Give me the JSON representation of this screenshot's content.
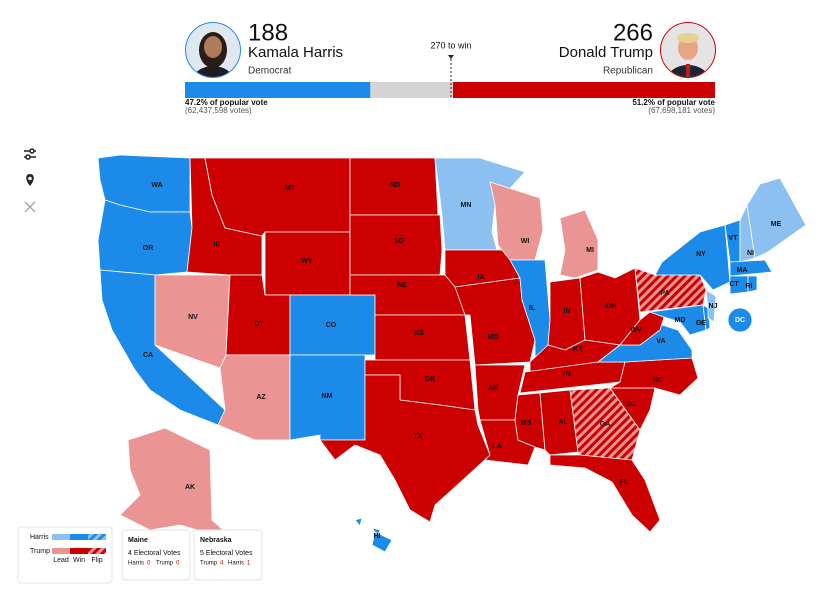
{
  "header": {
    "harris": {
      "electoral_votes": 188,
      "name": "Kamala Harris",
      "party": "Democrat",
      "color": "#1b8ae8",
      "popular_vote": "47.2% of popular vote",
      "votes": "(62,437,598 votes)"
    },
    "trump": {
      "electoral_votes": 266,
      "name": "Donald Trump",
      "party": "Republican",
      "color": "#cc0000",
      "popular_vote": "51.2% of popular vote",
      "votes": "(67,698,181 votes)"
    },
    "electoral_bar": {
      "xlim": [
        0,
        538
      ],
      "threshold": {
        "value": 270,
        "label": "270 to win"
      }
    }
  },
  "map": {
    "colors": {
      "harris_win": "#1b8ae8",
      "harris_lead": "#8cc0f0",
      "trump_win": "#cc0000",
      "trump_lead": "#eb9494"
    },
    "states": [
      {
        "label": "WA",
        "status": "harris_win"
      },
      {
        "label": "OR",
        "status": "harris_win"
      },
      {
        "label": "CA",
        "status": "harris_win"
      },
      {
        "label": "NV",
        "status": "trump_lead"
      },
      {
        "label": "ID",
        "status": "trump_win"
      },
      {
        "label": "MT",
        "status": "trump_win"
      },
      {
        "label": "WY",
        "status": "trump_win"
      },
      {
        "label": "UT",
        "status": "trump_win"
      },
      {
        "label": "CO",
        "status": "harris_win"
      },
      {
        "label": "AZ",
        "status": "trump_lead"
      },
      {
        "label": "NM",
        "status": "harris_win"
      },
      {
        "label": "ND",
        "status": "trump_win"
      },
      {
        "label": "SD",
        "status": "trump_win"
      },
      {
        "label": "NE",
        "status": "trump_win"
      },
      {
        "label": "KS",
        "status": "trump_win"
      },
      {
        "label": "OK",
        "status": "trump_win"
      },
      {
        "label": "TX",
        "status": "trump_win"
      },
      {
        "label": "MN",
        "status": "harris_lead"
      },
      {
        "label": "IA",
        "status": "trump_win"
      },
      {
        "label": "MO",
        "status": "trump_win"
      },
      {
        "label": "AR",
        "status": "trump_win"
      },
      {
        "label": "LA",
        "status": "trump_win"
      },
      {
        "label": "WI",
        "status": "trump_lead"
      },
      {
        "label": "IL",
        "status": "harris_win"
      },
      {
        "label": "MI",
        "status": "trump_lead"
      },
      {
        "label": "IN",
        "status": "trump_win"
      },
      {
        "label": "OH",
        "status": "trump_win"
      },
      {
        "label": "KY",
        "status": "trump_win"
      },
      {
        "label": "TN",
        "status": "trump_win"
      },
      {
        "label": "MS",
        "status": "trump_win"
      },
      {
        "label": "AL",
        "status": "trump_win"
      },
      {
        "label": "GA",
        "status": "trump_win",
        "flip": true
      },
      {
        "label": "FL",
        "status": "trump_win"
      },
      {
        "label": "SC",
        "status": "trump_win"
      },
      {
        "label": "NC",
        "status": "trump_win"
      },
      {
        "label": "VA",
        "status": "harris_win"
      },
      {
        "label": "WV",
        "status": "trump_win"
      },
      {
        "label": "PA",
        "status": "trump_win",
        "flip": true
      },
      {
        "label": "NY",
        "status": "harris_win"
      },
      {
        "label": "MD",
        "status": "harris_win"
      },
      {
        "label": "DE",
        "status": "harris_win"
      },
      {
        "label": "NJ",
        "status": "harris_lead"
      },
      {
        "label": "VT",
        "status": "harris_win"
      },
      {
        "label": "NH",
        "status": "harris_lead"
      },
      {
        "label": "ME",
        "status": "harris_lead"
      },
      {
        "label": "MA",
        "status": "harris_win"
      },
      {
        "label": "CT",
        "status": "harris_win"
      },
      {
        "label": "RI",
        "status": "harris_win"
      },
      {
        "label": "DC",
        "status": "harris_win"
      },
      {
        "label": "AK",
        "status": "trump_lead"
      },
      {
        "label": "HI",
        "status": "harris_win"
      }
    ]
  },
  "legend": {
    "rows": [
      "Harris",
      "Trump"
    ],
    "columns": [
      "Lead",
      "Win",
      "Flip"
    ]
  },
  "split_states": [
    {
      "name": "Maine",
      "electoral_votes": "4 Electoral Votes",
      "results": [
        {
          "name": "Harris",
          "value": 0
        },
        {
          "name": "Trump",
          "value": 0
        }
      ]
    },
    {
      "name": "Nebraska",
      "electoral_votes": "5 Electoral Votes",
      "results": [
        {
          "name": "Trump",
          "value": 4
        },
        {
          "name": "Harris",
          "value": 1
        }
      ]
    }
  ]
}
